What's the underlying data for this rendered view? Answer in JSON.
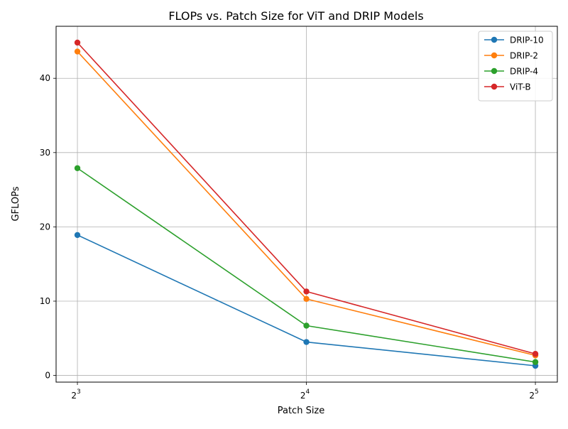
{
  "chart_data": {
    "type": "line",
    "title": "FLOPs vs. Patch Size for ViT and DRIP Models",
    "xlabel": "Patch Size",
    "ylabel": "GFLOPs",
    "x_scale": "log2",
    "x": [
      8,
      16,
      32
    ],
    "x_tick_labels": [
      {
        "base": "2",
        "exp": "3"
      },
      {
        "base": "2",
        "exp": "4"
      },
      {
        "base": "2",
        "exp": "5"
      }
    ],
    "xlim": [
      7.5,
      34.2
    ],
    "ylim": [
      -0.9,
      47.0
    ],
    "y_ticks": [
      0,
      10,
      20,
      30,
      40
    ],
    "grid": true,
    "legend_position": "top-right",
    "series": [
      {
        "name": "DRIP-10",
        "color": "#1f77b4",
        "values": [
          18.9,
          4.5,
          1.3
        ]
      },
      {
        "name": "DRIP-2",
        "color": "#ff7f0e",
        "values": [
          43.6,
          10.3,
          2.7
        ]
      },
      {
        "name": "DRIP-4",
        "color": "#2ca02c",
        "values": [
          27.9,
          6.7,
          1.8
        ]
      },
      {
        "name": "ViT-B",
        "color": "#d62728",
        "values": [
          44.8,
          11.3,
          2.9
        ]
      }
    ]
  }
}
